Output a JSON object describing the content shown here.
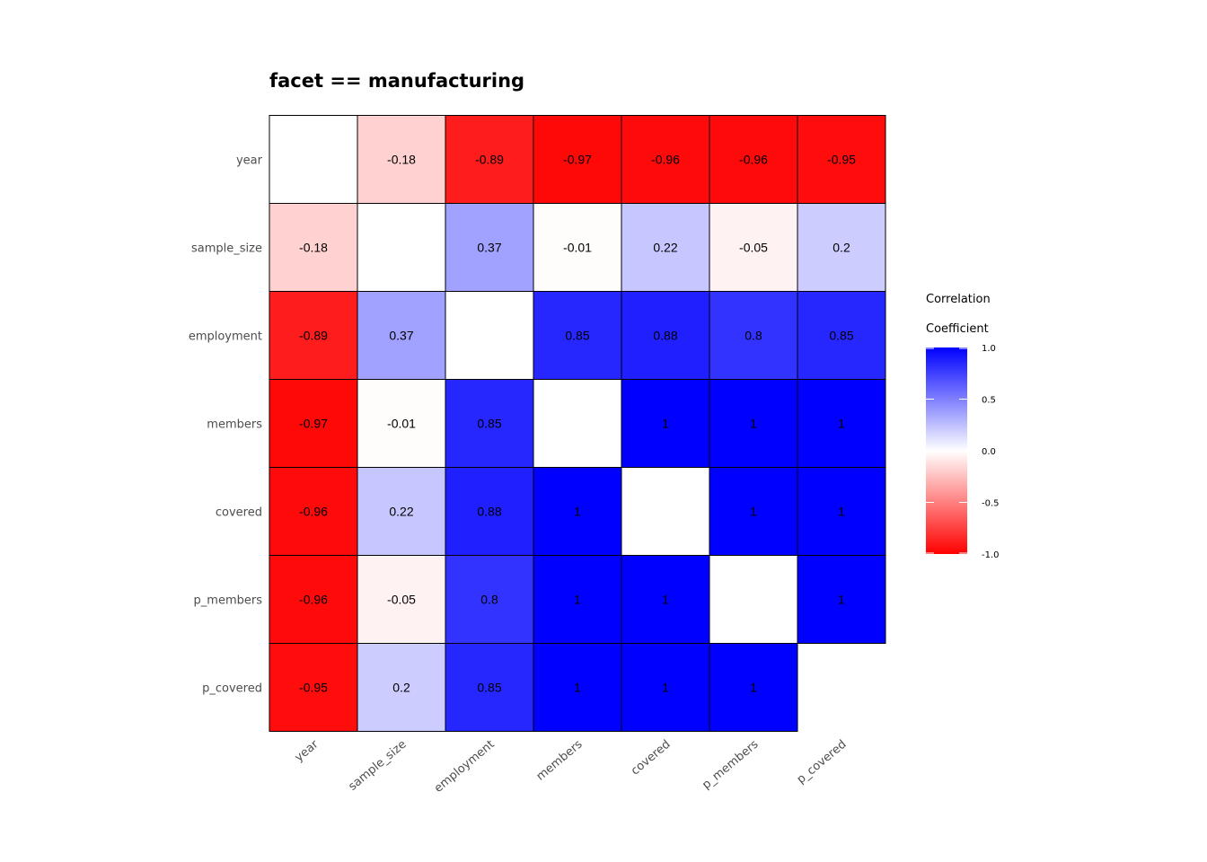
{
  "chart_data": {
    "type": "heatmap",
    "title": "facet == manufacturing",
    "variables": [
      "year",
      "sample_size",
      "employment",
      "members",
      "covered",
      "p_members",
      "p_covered"
    ],
    "matrix": [
      [
        null,
        -0.18,
        -0.89,
        -0.97,
        -0.96,
        -0.96,
        -0.95
      ],
      [
        -0.18,
        null,
        0.37,
        -0.01,
        0.22,
        -0.05,
        0.2
      ],
      [
        -0.89,
        0.37,
        null,
        0.85,
        0.88,
        0.8,
        0.85
      ],
      [
        -0.97,
        -0.01,
        0.85,
        null,
        1,
        1,
        1
      ],
      [
        -0.96,
        0.22,
        0.88,
        1,
        null,
        1,
        1
      ],
      [
        -0.96,
        -0.05,
        0.8,
        1,
        1,
        null,
        1
      ],
      [
        -0.95,
        0.2,
        0.85,
        1,
        1,
        1,
        null
      ]
    ],
    "labels": [
      [
        null,
        "-0.18",
        "-0.89",
        "-0.97",
        "-0.96",
        "-0.96",
        "-0.95"
      ],
      [
        "-0.18",
        null,
        "0.37",
        "-0.01",
        "0.22",
        "-0.05",
        "0.2"
      ],
      [
        "-0.89",
        "0.37",
        null,
        "0.85",
        "0.88",
        "0.8",
        "0.85"
      ],
      [
        "-0.97",
        "-0.01",
        "0.85",
        null,
        "1",
        "1",
        "1"
      ],
      [
        "-0.96",
        "0.22",
        "0.88",
        "1",
        null,
        "1",
        "1"
      ],
      [
        "-0.96",
        "-0.05",
        "0.8",
        "1",
        "1",
        null,
        "1"
      ],
      [
        "-0.95",
        "0.2",
        "0.85",
        "1",
        "1",
        "1",
        null
      ]
    ],
    "hidden_cells": [
      [
        6,
        6
      ],
      [
        5,
        5
      ]
    ],
    "legend": {
      "title_lines": [
        "Correlation",
        "Coefficient"
      ],
      "ticks": [
        "1.0",
        "0.5",
        "0.0",
        "-0.5",
        "-1.0"
      ],
      "tick_values": [
        1,
        0.5,
        0,
        -0.5,
        -1
      ],
      "placement": "right"
    },
    "colors": {
      "low": "#ff0000",
      "mid": "#ffffff",
      "high": "#0000ff"
    },
    "value_range": [
      -1,
      1
    ]
  }
}
